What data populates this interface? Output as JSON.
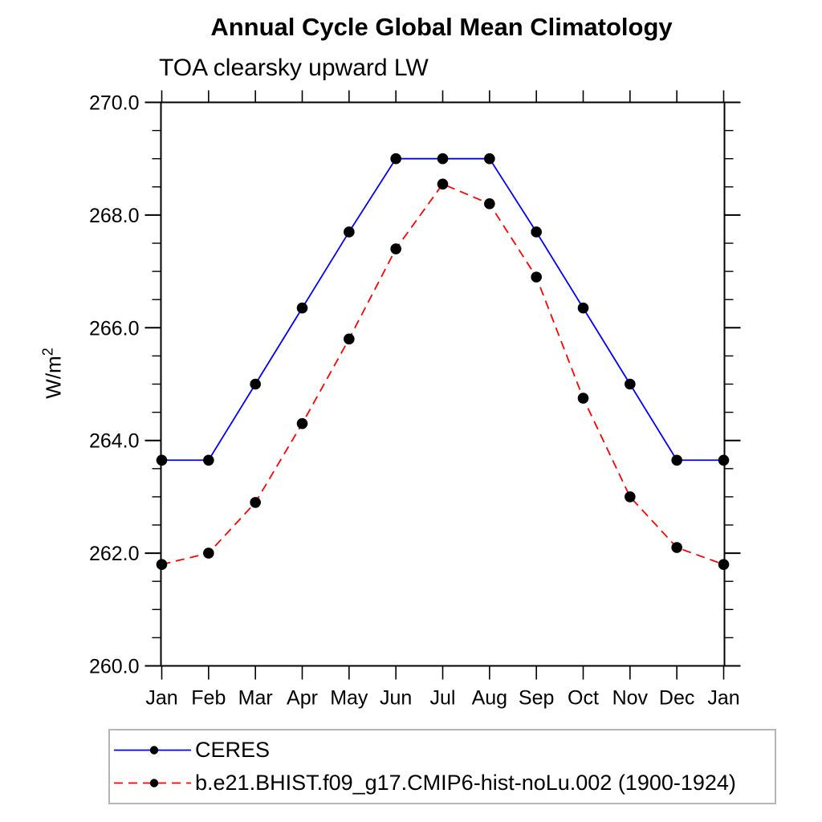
{
  "title": "Annual Cycle Global Mean Climatology",
  "subtitle": "TOA clearsky upward LW",
  "y_axis_label": "W/m",
  "y_axis_label_sup": "2",
  "chart_data": {
    "type": "line",
    "x_categories": [
      "Jan",
      "Feb",
      "Mar",
      "Apr",
      "May",
      "Jun",
      "Jul",
      "Aug",
      "Sep",
      "Oct",
      "Nov",
      "Dec",
      "Jan"
    ],
    "ylabel": "W/m2",
    "ylim": [
      260.0,
      270.0
    ],
    "ytick_major_interval": 2.0,
    "ytick_minor_interval": 0.5,
    "ytick_labels": [
      "260.0",
      "262.0",
      "264.0",
      "266.0",
      "268.0",
      "270.0"
    ],
    "grid": false,
    "legend_position": "bottom-left",
    "series": [
      {
        "name": "CERES",
        "color": "#0000ff",
        "line_style": "solid",
        "marker": "circle",
        "marker_color": "#000000",
        "values": [
          263.65,
          263.65,
          265.0,
          266.35,
          267.7,
          269.0,
          269.0,
          269.0,
          267.7,
          266.35,
          265.0,
          263.65,
          263.65
        ]
      },
      {
        "name": "b.e21.BHIST.f09_g17.CMIP6-hist-noLu.002 (1900-1924)",
        "color": "#ff0000",
        "line_style": "dashed",
        "marker": "circle",
        "marker_color": "#000000",
        "values": [
          261.8,
          262.0,
          262.9,
          264.3,
          265.8,
          267.4,
          268.55,
          268.2,
          266.9,
          264.75,
          263.0,
          262.1,
          261.8
        ]
      }
    ]
  }
}
